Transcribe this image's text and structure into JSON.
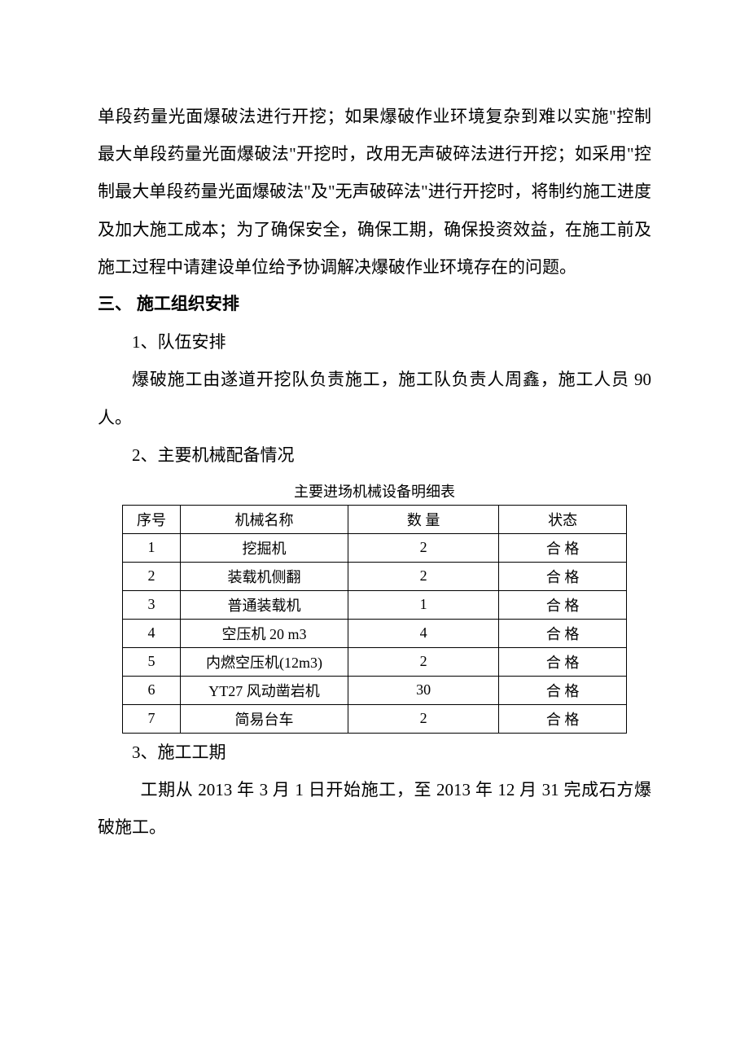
{
  "paragraphs": {
    "p1": "单段药量光面爆破法进行开挖；如果爆破作业环境复杂到难以实施\"控制最大单段药量光面爆破法\"开挖时，改用无声破碎法进行开挖；如采用\"控制最大单段药量光面爆破法\"及\"无声破碎法\"进行开挖时，将制约施工进度及加大施工成本；为了确保安全，确保工期，确保投资效益，在施工前及施工过程中请建设单位给予协调解决爆破作业环境存在的问题。"
  },
  "section3": {
    "heading": "三、 施工组织安排",
    "sub1_title": "1、队伍安排",
    "sub1_body": "爆破施工由遂道开挖队负责施工，施工队负责人周鑫，施工人员 90人。",
    "sub2_title": "2、主要机械配备情况",
    "table_caption": "主要进场机械设备明细表",
    "table": {
      "headers": {
        "seq": "序号",
        "name": "机械名称",
        "qty": "数   量",
        "state": "状态"
      },
      "rows": [
        {
          "seq": "1",
          "name": "挖掘机",
          "qty": "2",
          "state": "合 格"
        },
        {
          "seq": "2",
          "name": "装载机侧翻",
          "qty": "2",
          "state": "合 格"
        },
        {
          "seq": "3",
          "name": "普通装载机",
          "qty": "1",
          "state": "合 格"
        },
        {
          "seq": "4",
          "name": "空压机 20 m3",
          "qty": "4",
          "state": "合 格"
        },
        {
          "seq": "5",
          "name": "内燃空压机(12m3)",
          "qty": "2",
          "state": "合 格"
        },
        {
          "seq": "6",
          "name": "YT27 风动凿岩机",
          "qty": "30",
          "state": "合 格"
        },
        {
          "seq": "7",
          "name": "简易台车",
          "qty": "2",
          "state": "合 格"
        }
      ]
    },
    "sub3_title": "3、施工工期",
    "sub3_body": "工期从 2013 年 3 月 1 日开始施工，至 2013 年 12 月 31 完成石方爆破施工。"
  }
}
